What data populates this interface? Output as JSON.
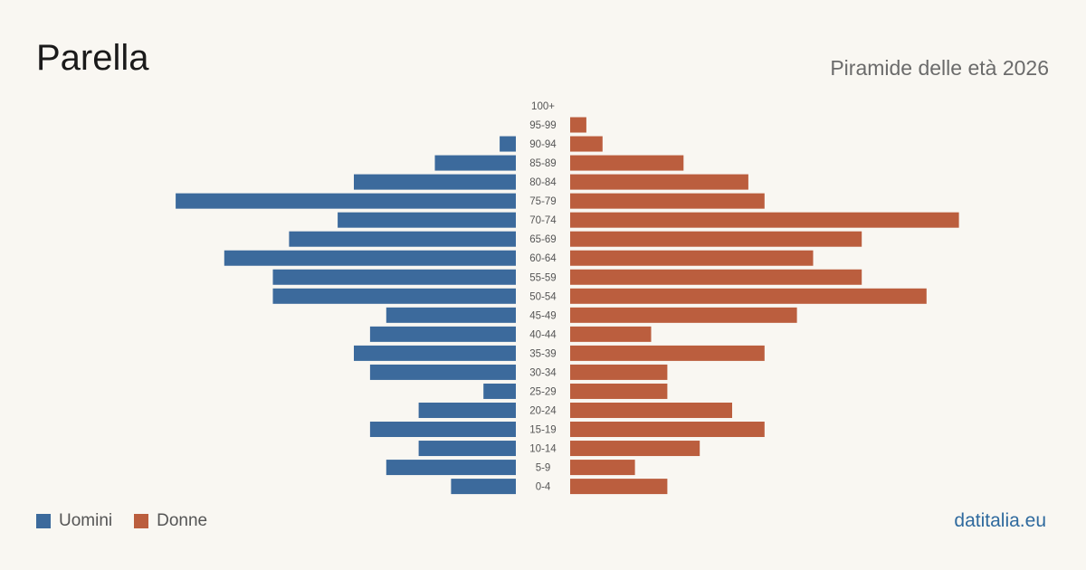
{
  "header": {
    "title": "Parella",
    "subtitle": "Piramide delle età 2026"
  },
  "legend": {
    "men_label": "Uomini",
    "women_label": "Donne"
  },
  "brand": "datitalia.eu",
  "colors": {
    "men": "#3c6a9c",
    "women": "#bb5e3e",
    "label": "#555555"
  },
  "chart_data": {
    "type": "bar",
    "orientation": "horizontal-pyramid",
    "categories": [
      "100+",
      "95-99",
      "90-94",
      "85-89",
      "80-84",
      "75-79",
      "70-74",
      "65-69",
      "60-64",
      "55-59",
      "50-54",
      "45-49",
      "40-44",
      "35-39",
      "30-34",
      "25-29",
      "20-24",
      "15-19",
      "10-14",
      "5-9",
      "0-4"
    ],
    "series": [
      {
        "name": "Uomini",
        "side": "left",
        "values": [
          0,
          0,
          1,
          5,
          10,
          21,
          11,
          14,
          18,
          15,
          15,
          8,
          9,
          10,
          9,
          2,
          6,
          9,
          6,
          8,
          4
        ]
      },
      {
        "name": "Donne",
        "side": "right",
        "values": [
          0,
          1,
          2,
          7,
          11,
          12,
          24,
          18,
          15,
          18,
          22,
          14,
          5,
          12,
          6,
          6,
          10,
          12,
          8,
          4,
          6
        ]
      }
    ],
    "legend_position": "bottom-left",
    "grid": false
  }
}
